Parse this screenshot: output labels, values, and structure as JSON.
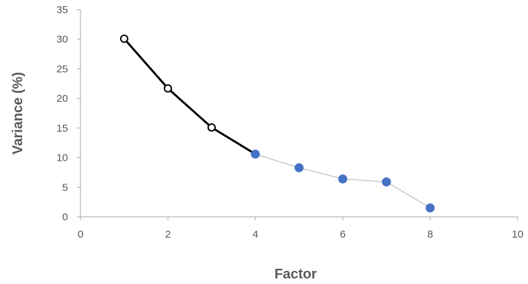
{
  "chart_data": {
    "type": "line",
    "title": "",
    "xlabel": "Factor",
    "ylabel": "Variance (%)",
    "xlim": [
      0,
      10
    ],
    "ylim": [
      0,
      35
    ],
    "xticks": [
      0,
      2,
      4,
      6,
      8,
      10
    ],
    "yticks": [
      0,
      5,
      10,
      15,
      20,
      25,
      30,
      35
    ],
    "grid": false,
    "series": [
      {
        "x": [
          1,
          2,
          3,
          4,
          5,
          6,
          7,
          8
        ],
        "y": [
          30.1,
          21.7,
          15.1,
          10.6,
          8.3,
          6.4,
          5.9,
          1.5
        ],
        "emphasized_through_x": 4,
        "colors": {
          "emphasized": "#000000",
          "rest": "#bfbfbf",
          "open_marker": "#000000",
          "filled_marker": "#4472c4"
        }
      }
    ]
  }
}
